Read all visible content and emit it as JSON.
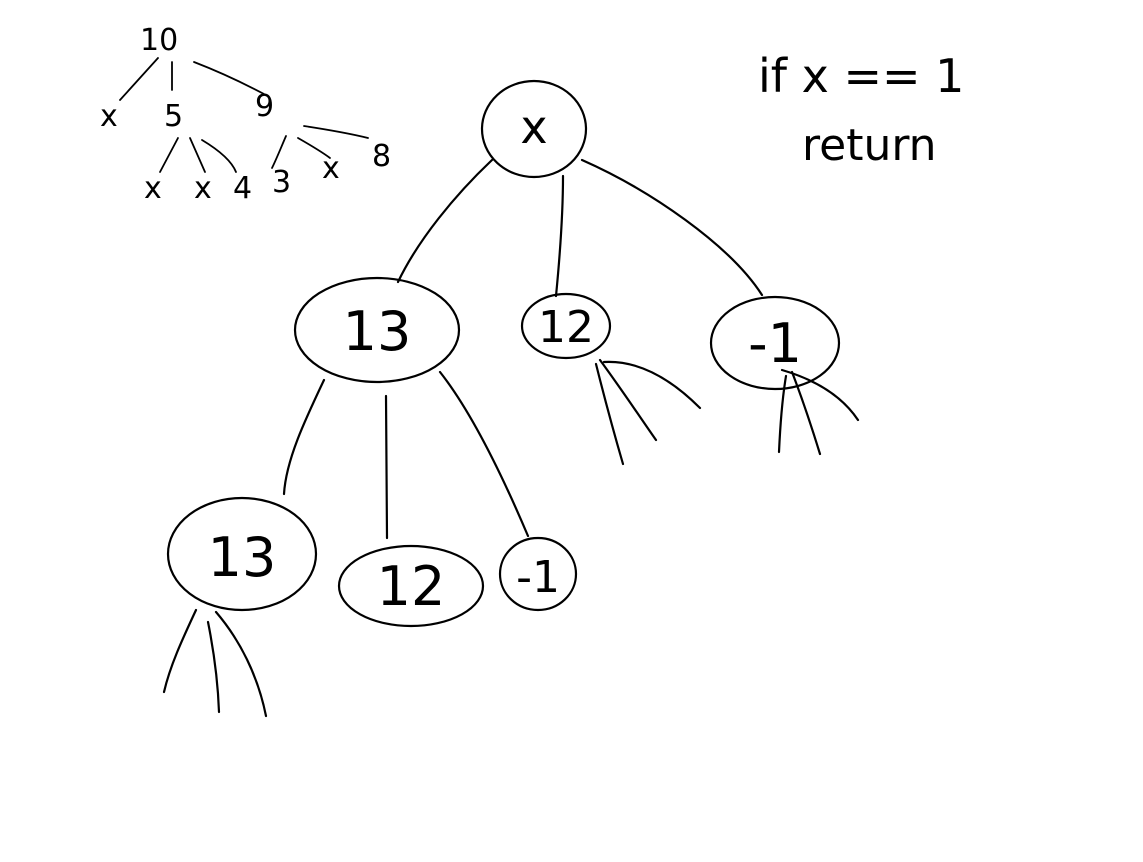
{
  "small_tree": {
    "root": "10",
    "children": [
      "x",
      "5",
      "9"
    ],
    "five_children": [
      "x",
      "x",
      "4"
    ],
    "nine_children": [
      "3",
      "x",
      "8"
    ]
  },
  "main_tree": {
    "root": "x",
    "level1": [
      "13",
      "12",
      "-1"
    ],
    "level2": [
      "13",
      "12",
      "-1"
    ]
  },
  "note": {
    "line1": "if x == 1",
    "line2": "return"
  }
}
